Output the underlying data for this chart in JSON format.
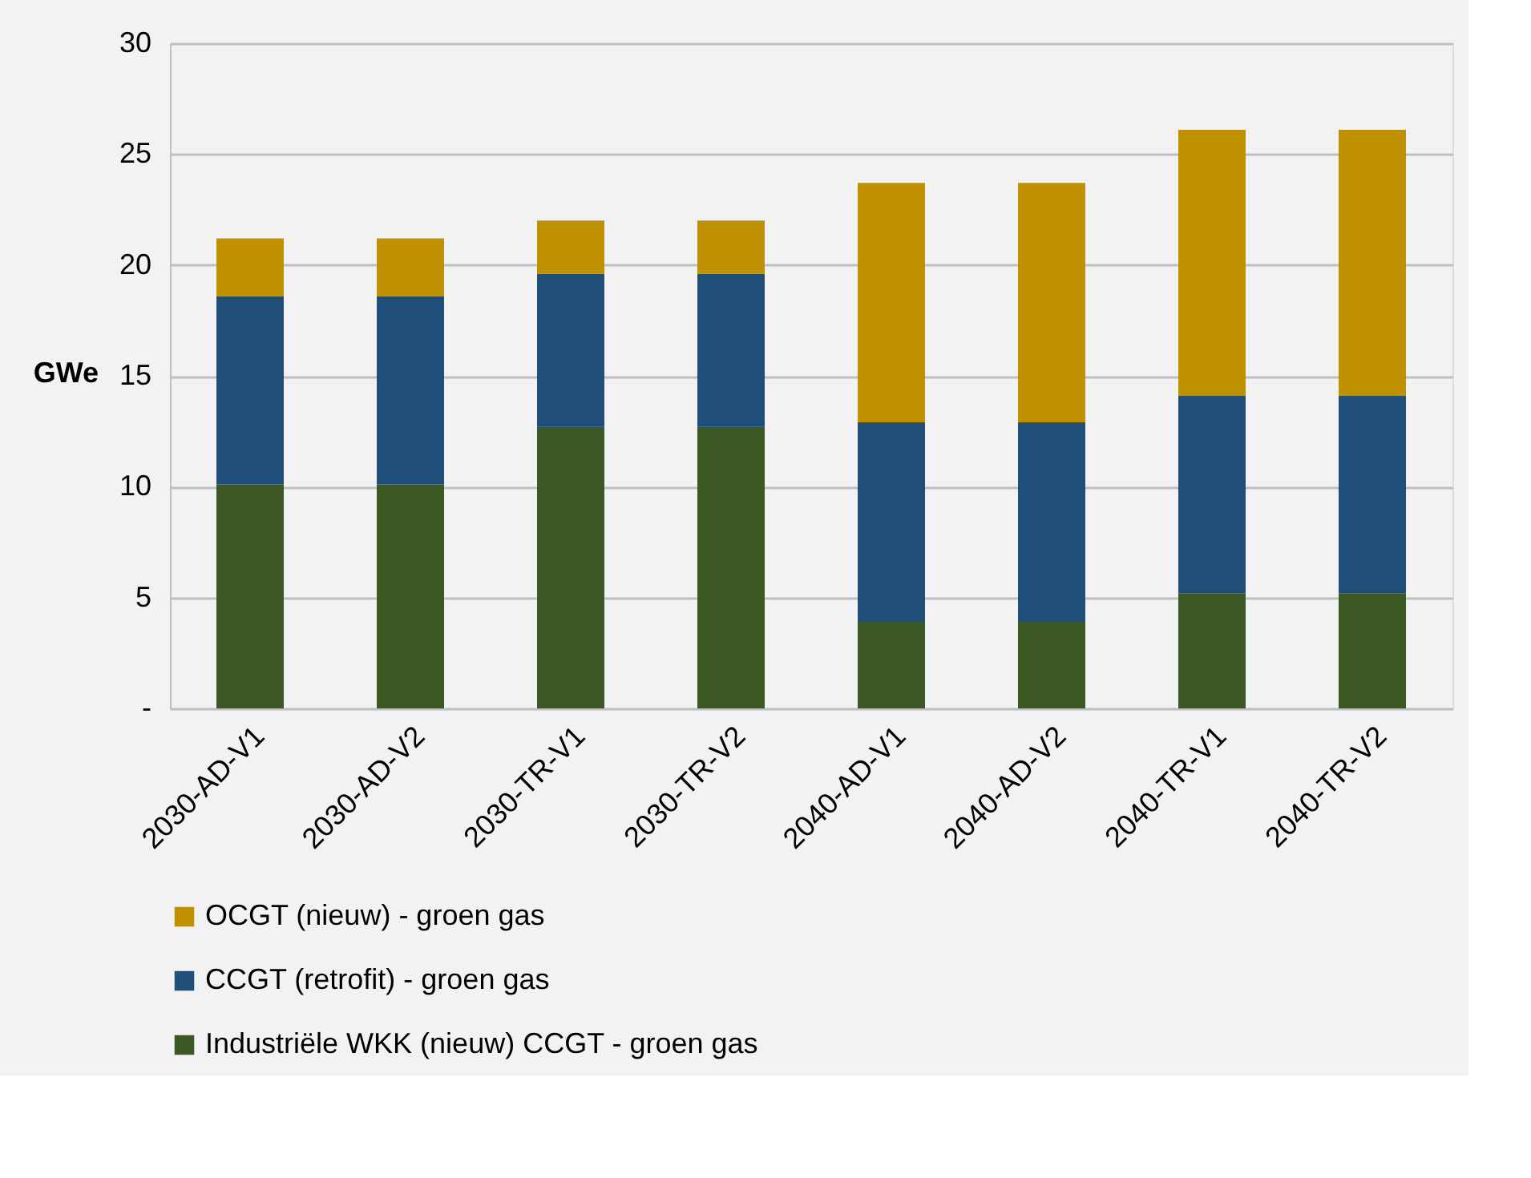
{
  "chart_data": {
    "type": "bar",
    "stacked": true,
    "ylabel": "GWe",
    "categories": [
      "2030-AD-V1",
      "2030-AD-V2",
      "2030-TR-V1",
      "2030-TR-V2",
      "2040-AD-V1",
      "2040-AD-V2",
      "2040-TR-V1",
      "2040-TR-V2"
    ],
    "series": [
      {
        "name": "Industriële WKK (nieuw) CCGT - groen gas",
        "color": "#3b5724",
        "values": [
          10.1,
          10.1,
          12.7,
          12.7,
          3.9,
          3.9,
          5.2,
          5.2
        ]
      },
      {
        "name": "CCGT (retrofit) - groen gas",
        "color": "#1f4e79",
        "values": [
          8.5,
          8.5,
          6.9,
          6.9,
          9.0,
          9.0,
          8.9,
          8.9
        ]
      },
      {
        "name": "OCGT (nieuw) - groen gas",
        "color": "#bf9000",
        "values": [
          2.6,
          2.6,
          2.4,
          2.4,
          10.8,
          10.8,
          12.0,
          12.0
        ]
      }
    ],
    "ylim": [
      0,
      30
    ],
    "yticks": [
      {
        "value": 0,
        "label": "-"
      },
      5,
      10,
      15,
      20,
      25,
      30
    ],
    "grid": "y",
    "legend": "bottom"
  }
}
